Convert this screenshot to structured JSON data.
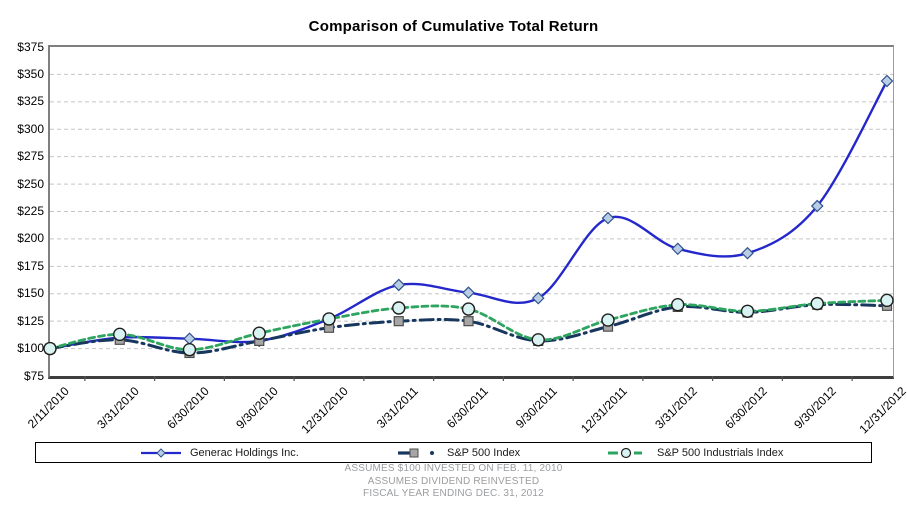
{
  "title": "Comparison of Cumulative Total Return",
  "footer": {
    "line1": "ASSUMES $100 INVESTED ON FEB. 11, 2010",
    "line2": "ASSUMES DIVIDEND REINVESTED",
    "line3": "FISCAL YEAR ENDING DEC. 31, 2012"
  },
  "colors": {
    "gridline": "#C5C5C5",
    "axis": "#7F7F7F",
    "axis_bottom": "#3F3F3F",
    "tick": "#555555",
    "footer_text": "#9B9DA0"
  },
  "chart_data": {
    "type": "line",
    "title": "Comparison of Cumulative Total Return",
    "categories": [
      "2/11/2010",
      "3/31/2010",
      "6/30/2010",
      "9/30/2010",
      "12/31/2010",
      "3/31/2011",
      "6/30/2011",
      "9/30/2011",
      "12/31/2011",
      "3/31/2012",
      "6/30/2012",
      "9/30/2012",
      "12/31/2012"
    ],
    "series": [
      {
        "name": "Generac Holdings Inc.",
        "values": [
          100,
          110,
          109,
          107,
          127,
          158,
          151,
          146,
          219,
          191,
          187,
          230,
          344
        ],
        "color": "#2428CB",
        "dash": "solid",
        "line_width": 2.4,
        "marker": "diamond",
        "marker_fill": "#B9CDE5",
        "marker_stroke": "#31538F"
      },
      {
        "name": "S&P 500 Index",
        "values": [
          100,
          108,
          96,
          107,
          119,
          125,
          125,
          107,
          120,
          138,
          133,
          140,
          139
        ],
        "color": "#17375E",
        "dash": "long-dash-dot",
        "line_width": 3,
        "marker": "square",
        "marker_fill": "#A6A6A6",
        "marker_stroke": "#4D4D4D"
      },
      {
        "name": "S&P 500 Industrials Index",
        "values": [
          100,
          113,
          99,
          114,
          127,
          137,
          136,
          108,
          126,
          140,
          134,
          141,
          144
        ],
        "color": "#2DA45F",
        "dash": "dash",
        "line_width": 2.8,
        "marker": "circle",
        "marker_fill": "#D9F2F2",
        "marker_stroke": "#1F1F1F"
      }
    ],
    "ylim": [
      75,
      375
    ],
    "ytick_step": 25,
    "ytick_prefix": "$",
    "grid": "horizontal-dashed",
    "smooth_lines": true,
    "legend_position": "bottom-box",
    "xlabel_rotation_deg": -45
  }
}
